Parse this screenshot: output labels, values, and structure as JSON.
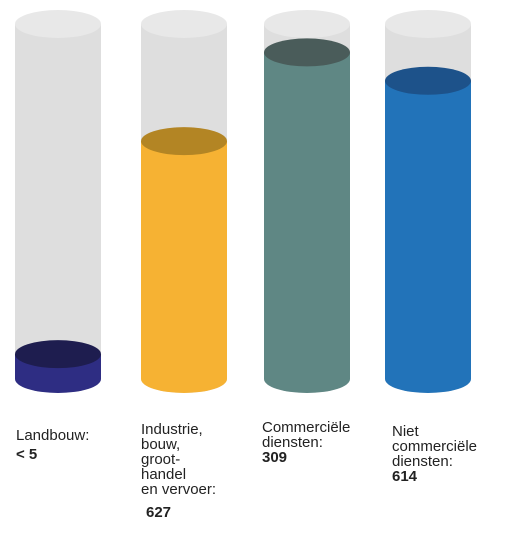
{
  "chart_data": {
    "type": "bar",
    "categories": [
      "Landbouw:",
      "Industrie,\nbouw,\ngroot-\nhandel\nen vervoer:",
      "Commerciële\ndiensten:",
      "Niet\ncommerciële\ndiensten:"
    ],
    "value_labels": [
      "< 5",
      "627",
      "309",
      "614"
    ],
    "fill_levels": [
      0.07,
      0.67,
      0.92,
      0.84
    ],
    "colors": {
      "track": "#dedede",
      "track_top": "#e8e8e8",
      "series": [
        "#2e2d83",
        "#f6b233",
        "#5f8784",
        "#2273b9"
      ],
      "series_top": [
        "#1e1d4f",
        "#b38524",
        "#4a5c5a",
        "#1d528a"
      ]
    },
    "title": "",
    "xlabel": "",
    "ylabel": ""
  }
}
